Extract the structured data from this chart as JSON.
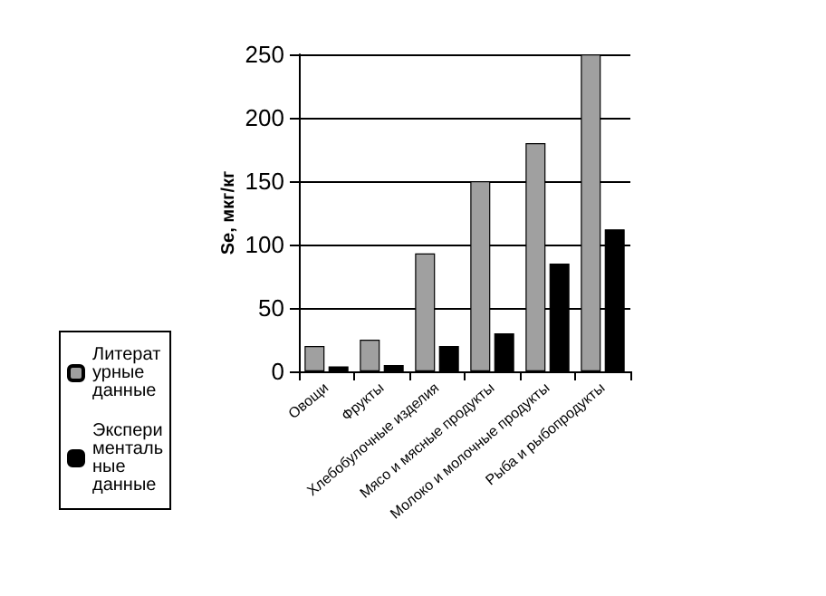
{
  "chart_data": {
    "type": "bar",
    "ylabel": "Se, мкг/кг",
    "categories": [
      "Овощи",
      "Фрукты",
      "Хлебобулочные изделия",
      "Мясо и мясные продукты",
      "Молоко и молочные продукты",
      "Рыба и рыбопродукты"
    ],
    "series": [
      {
        "name": "Литературные данные",
        "color": "#a0a0a0",
        "values": [
          20,
          25,
          93,
          150,
          180,
          250
        ]
      },
      {
        "name": "Экспериментальные данные",
        "color": "#000000",
        "values": [
          4,
          5,
          20,
          30,
          85,
          112
        ]
      }
    ],
    "ylim": [
      0,
      250
    ],
    "yticks": [
      0,
      50,
      100,
      150,
      200,
      250
    ],
    "grid": "y",
    "legend": "left"
  }
}
